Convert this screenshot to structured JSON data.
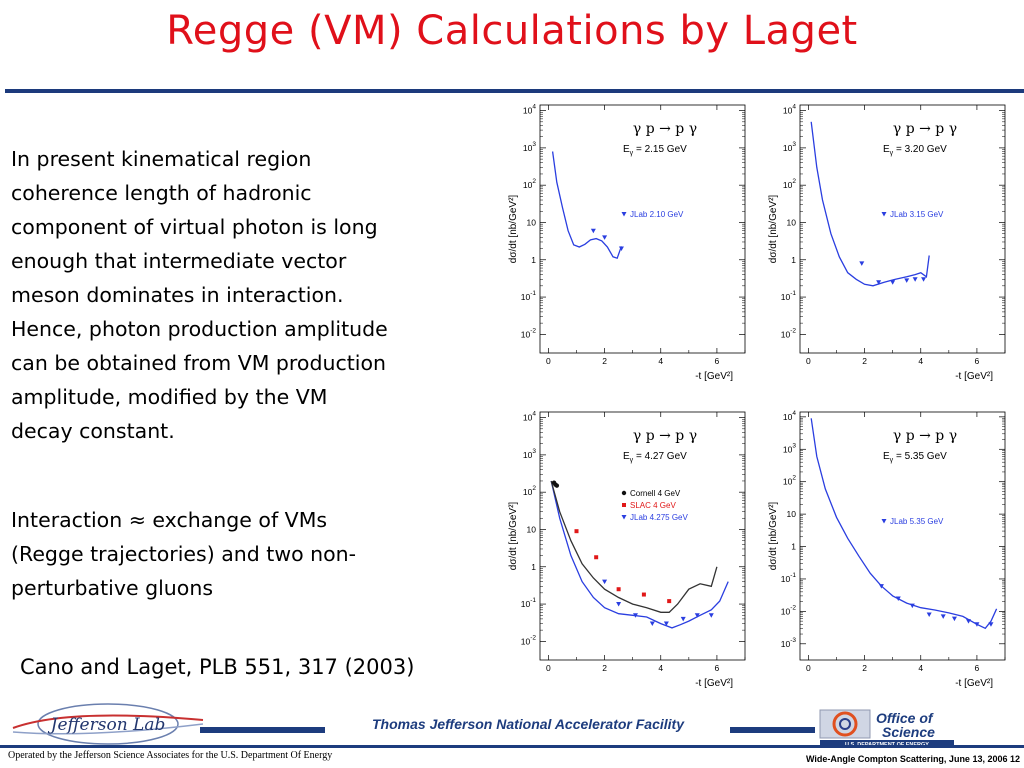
{
  "slide": {
    "title": "Regge (VM) Calculations by Laget",
    "paragraph1": "In present kinematical region coherence length of hadronic component of virtual photon is long enough that intermediate vector meson dominates in interaction. Hence, photon production amplitude can be obtained from VM production amplitude, modified by the VM decay constant.",
    "paragraph2": "Interaction ≈ exchange of VMs (Regge trajectories) and two non-perturbative gluons",
    "citation": "Cano and Laget, PLB 551, 317 (2003)"
  },
  "footer": {
    "center": "Thomas Jefferson National Accelerator Facility",
    "left": "Operated by the Jefferson Science Associates for the U.S. Department Of Energy",
    "right": "Wide-Angle Compton Scattering, June 13, 2006 12",
    "jlab_logo_text": "Jefferson Lab",
    "doe_line1": "Office of",
    "doe_line2": "Science",
    "doe_line3": "U.S. DEPARTMENT OF ENERGY"
  },
  "chart_data": [
    {
      "type": "scatter",
      "reaction": "γ p → p γ",
      "energy_label": "E",
      "energy_sub": "γ",
      "energy_value": " = 2.15 GeV",
      "xlabel": "-t  [GeV²]",
      "ylabel": "dσ/dt   [nb/GeV²]",
      "log_y": true,
      "xlim": [
        -0.3,
        7
      ],
      "ylim_exp": [
        -2.5,
        4.15
      ],
      "x_ticks": [
        0,
        2,
        4,
        6
      ],
      "y_ticks_exp": [
        -2,
        -1,
        0,
        1,
        2,
        3,
        4
      ],
      "series": [
        {
          "name": "JLab 2.10 GeV",
          "marker": "triangle-down",
          "color": "#2a3ee0",
          "x": [
            1.6,
            2.0,
            2.6
          ],
          "y": [
            6,
            4,
            2
          ]
        }
      ],
      "curves": [
        {
          "color": "#2a3ee0",
          "x": [
            0.15,
            0.3,
            0.5,
            0.7,
            0.9,
            1.1,
            1.3,
            1.5,
            1.7,
            1.9,
            2.1,
            2.3,
            2.45,
            2.6
          ],
          "y": [
            800,
            120,
            25,
            6,
            2.5,
            2.2,
            2.6,
            3.4,
            3.7,
            3.2,
            2.2,
            1.2,
            1.1,
            2.3
          ]
        }
      ]
    },
    {
      "type": "scatter",
      "reaction": "γ p → p γ",
      "energy_label": "E",
      "energy_sub": "γ",
      "energy_value": " = 3.20 GeV",
      "xlabel": "-t  [GeV²]",
      "ylabel": "dσ/dt   [nb/GeV²]",
      "log_y": true,
      "xlim": [
        -0.3,
        7
      ],
      "ylim_exp": [
        -2.5,
        4.15
      ],
      "x_ticks": [
        0,
        2,
        4,
        6
      ],
      "y_ticks_exp": [
        -2,
        -1,
        0,
        1,
        2,
        3,
        4
      ],
      "series": [
        {
          "name": "JLab 3.15 GeV",
          "marker": "triangle-down",
          "color": "#2a3ee0",
          "x": [
            1.9,
            2.5,
            3.0,
            3.5,
            3.8,
            4.1
          ],
          "y": [
            0.8,
            0.25,
            0.25,
            0.28,
            0.3,
            0.3
          ]
        }
      ],
      "curves": [
        {
          "color": "#2a3ee0",
          "x": [
            0.1,
            0.3,
            0.5,
            0.8,
            1.1,
            1.4,
            1.7,
            2.0,
            2.3,
            2.7,
            3.1,
            3.5,
            3.8,
            4.0,
            4.2,
            4.3
          ],
          "y": [
            5000,
            300,
            40,
            5,
            1.2,
            0.45,
            0.3,
            0.22,
            0.2,
            0.25,
            0.3,
            0.35,
            0.4,
            0.45,
            0.35,
            1.3
          ]
        }
      ]
    },
    {
      "type": "scatter",
      "reaction": "γ p → p γ",
      "energy_label": "E",
      "energy_sub": "γ",
      "energy_value": " = 4.27 GeV",
      "xlabel": "-t  [GeV²]",
      "ylabel": "dσ/dt   [nb/GeV²]",
      "log_y": true,
      "xlim": [
        -0.3,
        7
      ],
      "ylim_exp": [
        -2.5,
        4.15
      ],
      "x_ticks": [
        0,
        2,
        4,
        6
      ],
      "y_ticks_exp": [
        -2,
        -1,
        0,
        1,
        2,
        3,
        4
      ],
      "series": [
        {
          "name": "Cornell 4 GeV",
          "marker": "circle",
          "color": "#111111",
          "x": [
            0.2,
            0.25,
            0.3
          ],
          "y": [
            180,
            160,
            150
          ]
        },
        {
          "name": "SLAC 4 GeV",
          "marker": "square",
          "color": "#e01818",
          "x": [
            1.0,
            1.7,
            2.5,
            3.4,
            4.3
          ],
          "y": [
            9,
            1.8,
            0.25,
            0.18,
            0.12
          ]
        },
        {
          "name": "JLab 4.275 GeV",
          "marker": "triangle-down",
          "color": "#2a3ee0",
          "x": [
            2.0,
            2.5,
            3.1,
            3.7,
            4.2,
            4.8,
            5.3,
            5.8
          ],
          "y": [
            0.4,
            0.1,
            0.05,
            0.03,
            0.03,
            0.04,
            0.05,
            0.05
          ]
        }
      ],
      "curves": [
        {
          "color": "#2a3ee0",
          "x": [
            0.1,
            0.4,
            0.8,
            1.2,
            1.6,
            2.0,
            2.5,
            3.0,
            3.5,
            4.0,
            4.4,
            4.7,
            5.0,
            5.4,
            5.8,
            6.1,
            6.4
          ],
          "y": [
            200,
            20,
            2,
            0.4,
            0.15,
            0.08,
            0.055,
            0.05,
            0.045,
            0.03,
            0.023,
            0.028,
            0.035,
            0.05,
            0.07,
            0.12,
            0.4
          ]
        },
        {
          "color": "#333333",
          "x": [
            0.1,
            0.4,
            0.8,
            1.2,
            1.6,
            2.0,
            2.5,
            3.0,
            3.5,
            4.0,
            4.3,
            4.6,
            5.0,
            5.4,
            5.8,
            6.0
          ],
          "y": [
            200,
            30,
            5,
            1.2,
            0.5,
            0.25,
            0.15,
            0.1,
            0.08,
            0.06,
            0.06,
            0.1,
            0.25,
            0.35,
            0.3,
            1.0
          ]
        }
      ]
    },
    {
      "type": "scatter",
      "reaction": "γ p → p γ",
      "energy_label": "E",
      "energy_sub": "γ",
      "energy_value": " = 5.35 GeV",
      "xlabel": "-t  [GeV²]",
      "ylabel": "dσ/dt   [nb/GeV²]",
      "log_y": true,
      "xlim": [
        -0.3,
        7
      ],
      "ylim_exp": [
        -3.5,
        4.15
      ],
      "x_ticks": [
        0,
        2,
        4,
        6
      ],
      "y_ticks_exp": [
        -3,
        -2,
        -1,
        0,
        1,
        2,
        3,
        4
      ],
      "series": [
        {
          "name": "JLab 5.35 GeV",
          "marker": "triangle-down",
          "color": "#2a3ee0",
          "x": [
            2.6,
            3.2,
            3.7,
            4.3,
            4.8,
            5.2,
            5.7,
            6.0,
            6.5
          ],
          "y": [
            0.06,
            0.025,
            0.015,
            0.008,
            0.007,
            0.006,
            0.005,
            0.004,
            0.004
          ]
        }
      ],
      "curves": [
        {
          "color": "#2a3ee0",
          "x": [
            0.1,
            0.3,
            0.6,
            1.0,
            1.4,
            1.8,
            2.2,
            2.6,
            3.0,
            3.5,
            4.0,
            4.5,
            5.0,
            5.5,
            6.0,
            6.3,
            6.5,
            6.7
          ],
          "y": [
            9000,
            600,
            60,
            8,
            1.8,
            0.5,
            0.15,
            0.06,
            0.03,
            0.018,
            0.013,
            0.011,
            0.009,
            0.007,
            0.004,
            0.003,
            0.005,
            0.012
          ]
        }
      ]
    }
  ]
}
